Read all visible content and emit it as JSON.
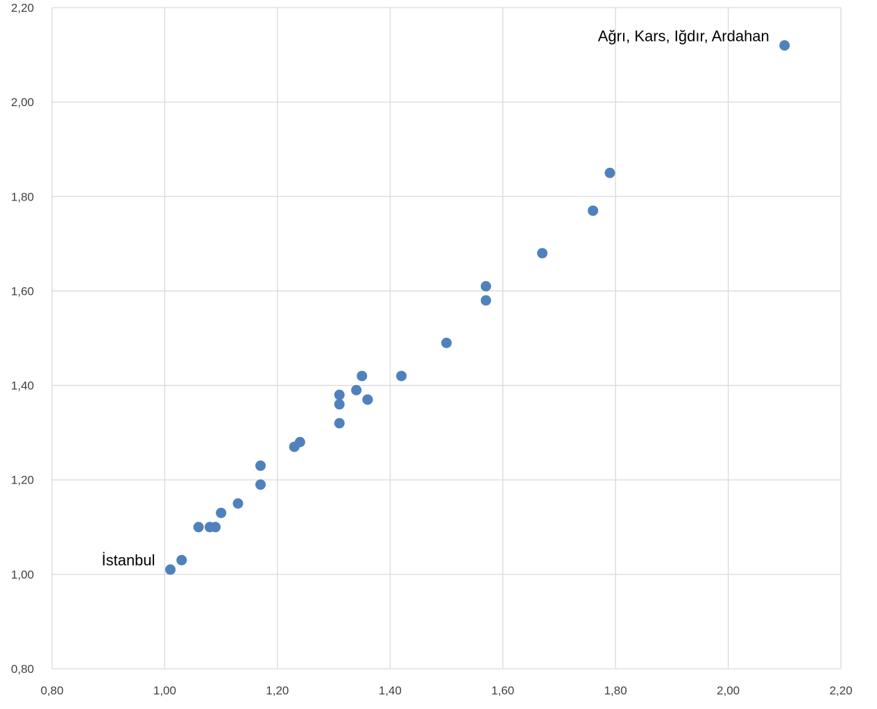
{
  "chart_data": {
    "type": "scatter",
    "title": "",
    "xlabel": "",
    "ylabel": "",
    "xlim": [
      0.8,
      2.2
    ],
    "ylim": [
      0.8,
      2.2
    ],
    "xticks": [
      "0,80",
      "1,00",
      "1,20",
      "1,40",
      "1,60",
      "1,80",
      "2,00",
      "2,20"
    ],
    "yticks": [
      "0,80",
      "1,00",
      "1,20",
      "1,40",
      "1,60",
      "1,80",
      "2,00",
      "2,20"
    ],
    "grid": true,
    "legend": "none",
    "marker_color": "#4F81BD",
    "gridline_color": "#D9D9D9",
    "points": [
      {
        "x": 1.01,
        "y": 1.01
      },
      {
        "x": 1.03,
        "y": 1.03
      },
      {
        "x": 1.06,
        "y": 1.1
      },
      {
        "x": 1.08,
        "y": 1.1
      },
      {
        "x": 1.09,
        "y": 1.1
      },
      {
        "x": 1.1,
        "y": 1.13
      },
      {
        "x": 1.13,
        "y": 1.15
      },
      {
        "x": 1.17,
        "y": 1.19
      },
      {
        "x": 1.17,
        "y": 1.23
      },
      {
        "x": 1.23,
        "y": 1.27
      },
      {
        "x": 1.24,
        "y": 1.28
      },
      {
        "x": 1.31,
        "y": 1.32
      },
      {
        "x": 1.31,
        "y": 1.36
      },
      {
        "x": 1.31,
        "y": 1.38
      },
      {
        "x": 1.34,
        "y": 1.39
      },
      {
        "x": 1.35,
        "y": 1.42
      },
      {
        "x": 1.36,
        "y": 1.37
      },
      {
        "x": 1.36,
        "y": 1.37
      },
      {
        "x": 1.42,
        "y": 1.42
      },
      {
        "x": 1.5,
        "y": 1.49
      },
      {
        "x": 1.57,
        "y": 1.61
      },
      {
        "x": 1.57,
        "y": 1.58
      },
      {
        "x": 1.67,
        "y": 1.68
      },
      {
        "x": 1.76,
        "y": 1.77
      },
      {
        "x": 1.79,
        "y": 1.85
      },
      {
        "x": 2.1,
        "y": 2.12
      }
    ],
    "annotations": [
      {
        "text": "İstanbul",
        "x": 1.01,
        "y": 1.01,
        "position": "left"
      },
      {
        "text": "Ağrı, Kars, Iğdır, Ardahan",
        "x": 2.1,
        "y": 2.12,
        "position": "left"
      }
    ]
  }
}
